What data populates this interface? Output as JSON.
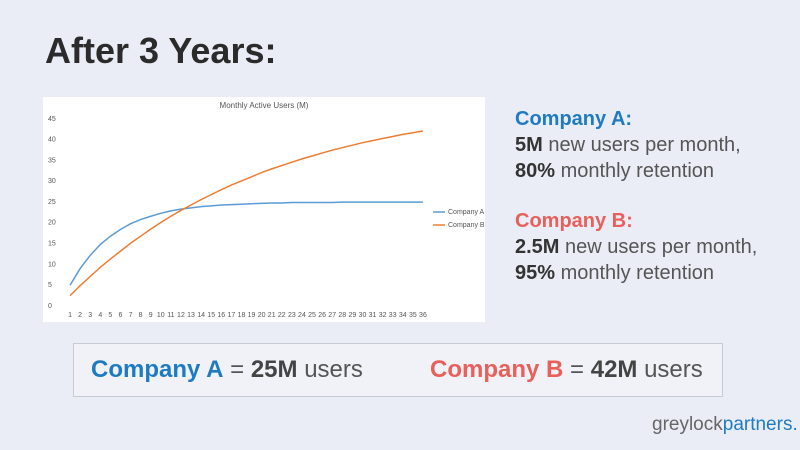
{
  "title": "After 3 Years:",
  "chart_data": {
    "type": "line",
    "title": "Monthly Active Users (M)",
    "categories": [
      "1",
      "2",
      "3",
      "4",
      "5",
      "6",
      "7",
      "8",
      "9",
      "10",
      "11",
      "12",
      "13",
      "14",
      "15",
      "16",
      "17",
      "18",
      "19",
      "20",
      "21",
      "22",
      "23",
      "24",
      "25",
      "26",
      "27",
      "28",
      "29",
      "30",
      "31",
      "32",
      "33",
      "34",
      "35",
      "36"
    ],
    "series": [
      {
        "name": "Company A",
        "color": "#5b9bd5",
        "values": [
          5,
          9,
          12.2,
          14.8,
          16.8,
          18.4,
          19.8,
          20.8,
          21.6,
          22.3,
          22.9,
          23.3,
          23.6,
          23.9,
          24.1,
          24.3,
          24.4,
          24.5,
          24.6,
          24.7,
          24.8,
          24.8,
          24.9,
          24.9,
          24.9,
          24.9,
          24.9,
          25,
          25,
          25,
          25,
          25,
          25,
          25,
          25,
          25
        ]
      },
      {
        "name": "Company B",
        "color": "#ed7d31",
        "values": [
          2.5,
          4.9,
          7.1,
          9.3,
          11.3,
          13.2,
          15.1,
          16.8,
          18.5,
          20.1,
          21.6,
          23,
          24.3,
          25.6,
          26.8,
          28,
          29.1,
          30.1,
          31.1,
          32.1,
          33,
          33.8,
          34.6,
          35.4,
          36.1,
          36.8,
          37.5,
          38.1,
          38.7,
          39.3,
          39.8,
          40.3,
          40.8,
          41.3,
          41.7,
          42.1
        ]
      }
    ],
    "ylim": [
      0,
      45
    ],
    "yticks": [
      0,
      5,
      10,
      15,
      20,
      25,
      30,
      35,
      40,
      45
    ],
    "grid": false,
    "legend": "right"
  },
  "note_a": {
    "heading": "Company A:",
    "parts": [
      "5M",
      "new users per month,",
      "80%",
      "monthly retention"
    ]
  },
  "note_b": {
    "heading": "Company B:",
    "parts": [
      "2.5M",
      "new users per month,",
      "95%",
      "monthly retention"
    ]
  },
  "summary": {
    "a": [
      "Company A",
      "=",
      "25M",
      "users"
    ],
    "b": [
      "Company B",
      "=",
      "42M",
      "users"
    ]
  },
  "logo": [
    "greylock",
    "partners."
  ]
}
